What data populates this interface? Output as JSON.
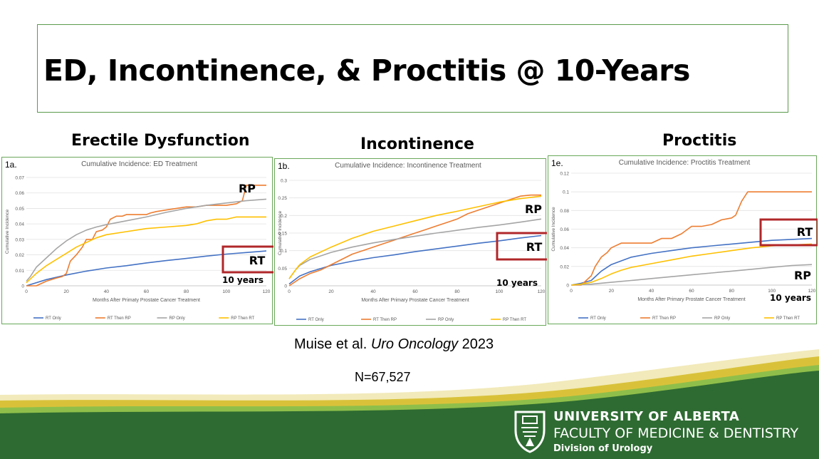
{
  "slide": {
    "title": "ED, Incontinence, & Proctitis @ 10-Years",
    "citation_authors": "Muise et al.",
    "citation_journal": "Uro Oncology",
    "citation_year": "2023",
    "n_label": "N=67,527"
  },
  "branding": {
    "line1": "UNIVERSITY OF ALBERTA",
    "line2": "FACULTY OF MEDICINE & DENTISTRY",
    "line3": "Division of Urology",
    "green": "#2e6b32",
    "gold": "#d9c23a"
  },
  "colors": {
    "RT Only": "#4472c4",
    "RT Then RP": "#ed7d31",
    "RP Only": "#a5a5a5",
    "RP Then RT": "#ffc000",
    "highlight": "#b0272a"
  },
  "chart_data": [
    {
      "type": "line",
      "heading": "Erectile Dysfunction",
      "panel": "1a.",
      "title": "Cumulative Incidence: ED Treatment",
      "xlabel": "Months After Primaty Prostate Cancer Treatment",
      "ylabel": "Cumulative Incidence",
      "xlim": [
        0,
        120
      ],
      "ylim": [
        0,
        0.07
      ],
      "xticks": [
        0,
        20,
        40,
        60,
        80,
        100,
        120
      ],
      "yticks": [
        0,
        0.01,
        0.02,
        0.03,
        0.04,
        0.05,
        0.06,
        0.07
      ],
      "grid": true,
      "legend": "bottom",
      "series": [
        {
          "name": "RT Only",
          "x": [
            0,
            10,
            20,
            30,
            40,
            50,
            60,
            70,
            80,
            90,
            100,
            110,
            120
          ],
          "y": [
            0,
            0.004,
            0.007,
            0.0095,
            0.0115,
            0.013,
            0.0148,
            0.0163,
            0.0177,
            0.0192,
            0.0205,
            0.0215,
            0.0225
          ]
        },
        {
          "name": "RT Then RP",
          "x": [
            0,
            5,
            10,
            15,
            18,
            20,
            22,
            25,
            28,
            30,
            33,
            35,
            38,
            40,
            42,
            45,
            48,
            50,
            55,
            60,
            62,
            65,
            70,
            75,
            80,
            85,
            90,
            100,
            105,
            108,
            110,
            115,
            120
          ],
          "y": [
            0,
            0,
            0.003,
            0.005,
            0.006,
            0.008,
            0.016,
            0.02,
            0.025,
            0.03,
            0.03,
            0.035,
            0.036,
            0.038,
            0.043,
            0.045,
            0.045,
            0.046,
            0.046,
            0.046,
            0.047,
            0.048,
            0.049,
            0.05,
            0.051,
            0.051,
            0.052,
            0.052,
            0.053,
            0.055,
            0.065,
            0.065,
            0.065
          ]
        },
        {
          "name": "RP Only",
          "x": [
            0,
            2,
            5,
            10,
            15,
            20,
            25,
            30,
            35,
            40,
            50,
            60,
            70,
            80,
            90,
            100,
            110,
            120
          ],
          "y": [
            0.003,
            0.006,
            0.012,
            0.018,
            0.024,
            0.029,
            0.033,
            0.036,
            0.038,
            0.0395,
            0.042,
            0.0445,
            0.0475,
            0.05,
            0.052,
            0.0535,
            0.055,
            0.056
          ]
        },
        {
          "name": "RP Then RT",
          "x": [
            0,
            5,
            10,
            15,
            20,
            25,
            30,
            35,
            40,
            50,
            55,
            60,
            70,
            80,
            85,
            90,
            95,
            100,
            105,
            110,
            120
          ],
          "y": [
            0.002,
            0.008,
            0.013,
            0.017,
            0.021,
            0.025,
            0.028,
            0.031,
            0.033,
            0.035,
            0.036,
            0.037,
            0.038,
            0.039,
            0.04,
            0.042,
            0.043,
            0.043,
            0.0445,
            0.0445,
            0.0445
          ]
        }
      ],
      "annotations": {
        "top_label": "RP",
        "boxed_label": "RT",
        "years_label": "10 years"
      }
    },
    {
      "type": "line",
      "heading": "Incontinence",
      "panel": "1b.",
      "title": "Cumulative Incidence: Incontinence Treatment",
      "xlabel": "Months After Primary Prostate Cancer Treatment",
      "ylabel": "Cumulative Incidence",
      "xlim": [
        0,
        120
      ],
      "ylim": [
        0,
        0.3
      ],
      "xticks": [
        0,
        20,
        40,
        60,
        80,
        100,
        120
      ],
      "yticks": [
        0,
        0.05,
        0.1,
        0.15,
        0.2,
        0.25,
        0.3
      ],
      "grid": true,
      "legend": "bottom",
      "series": [
        {
          "name": "RT Only",
          "x": [
            0,
            5,
            10,
            20,
            30,
            40,
            50,
            60,
            70,
            80,
            90,
            100,
            110,
            120
          ],
          "y": [
            0.005,
            0.028,
            0.04,
            0.058,
            0.07,
            0.08,
            0.088,
            0.097,
            0.105,
            0.113,
            0.121,
            0.128,
            0.136,
            0.143
          ]
        },
        {
          "name": "RT Then RP",
          "x": [
            0,
            5,
            10,
            15,
            20,
            25,
            30,
            35,
            40,
            45,
            50,
            55,
            60,
            65,
            70,
            75,
            80,
            85,
            90,
            95,
            100,
            105,
            110,
            115,
            120
          ],
          "y": [
            0,
            0.02,
            0.035,
            0.045,
            0.06,
            0.075,
            0.09,
            0.1,
            0.11,
            0.12,
            0.13,
            0.14,
            0.15,
            0.16,
            0.17,
            0.18,
            0.19,
            0.205,
            0.215,
            0.225,
            0.235,
            0.245,
            0.255,
            0.258,
            0.258
          ]
        },
        {
          "name": "RP Only",
          "x": [
            0,
            3,
            5,
            10,
            20,
            30,
            40,
            50,
            60,
            70,
            80,
            90,
            100,
            110,
            120
          ],
          "y": [
            0.02,
            0.045,
            0.058,
            0.075,
            0.095,
            0.11,
            0.122,
            0.132,
            0.141,
            0.15,
            0.158,
            0.166,
            0.173,
            0.181,
            0.19
          ]
        },
        {
          "name": "RP Then RT",
          "x": [
            0,
            3,
            5,
            10,
            20,
            30,
            40,
            50,
            60,
            70,
            80,
            90,
            100,
            110,
            120
          ],
          "y": [
            0.02,
            0.045,
            0.06,
            0.082,
            0.11,
            0.135,
            0.155,
            0.17,
            0.185,
            0.2,
            0.212,
            0.225,
            0.238,
            0.248,
            0.255
          ]
        }
      ],
      "annotations": {
        "top_label": "RP",
        "boxed_label": "RT",
        "years_label": "10 years"
      }
    },
    {
      "type": "line",
      "heading": "Proctitis",
      "panel": "1e.",
      "title": "Cumulative Incidence: Proctitis Treatment",
      "xlabel": "Months After Primary Prostate Cancer Treatment",
      "ylabel": "Cumulative Incidence",
      "xlim": [
        0,
        120
      ],
      "ylim": [
        0,
        0.12
      ],
      "xticks": [
        0,
        20,
        40,
        60,
        80,
        100,
        120
      ],
      "yticks": [
        0,
        0.02,
        0.04,
        0.06,
        0.08,
        0.1,
        0.12
      ],
      "grid": true,
      "legend": "bottom",
      "series": [
        {
          "name": "RT Only",
          "x": [
            0,
            5,
            10,
            15,
            20,
            30,
            40,
            50,
            60,
            70,
            80,
            90,
            100,
            110,
            120
          ],
          "y": [
            0,
            0.002,
            0.005,
            0.015,
            0.022,
            0.03,
            0.034,
            0.037,
            0.04,
            0.042,
            0.044,
            0.046,
            0.048,
            0.049,
            0.05
          ]
        },
        {
          "name": "RT Then RP",
          "x": [
            0,
            5,
            10,
            12,
            15,
            18,
            20,
            25,
            30,
            35,
            40,
            45,
            50,
            55,
            60,
            65,
            70,
            75,
            80,
            82,
            85,
            88,
            90,
            95,
            100,
            110,
            120
          ],
          "y": [
            0,
            0,
            0.01,
            0.02,
            0.03,
            0.035,
            0.04,
            0.045,
            0.045,
            0.045,
            0.045,
            0.05,
            0.05,
            0.055,
            0.063,
            0.063,
            0.065,
            0.07,
            0.072,
            0.075,
            0.09,
            0.1,
            0.1,
            0.1,
            0.1,
            0.1,
            0.1
          ]
        },
        {
          "name": "RP Only",
          "x": [
            0,
            10,
            20,
            30,
            40,
            50,
            60,
            70,
            80,
            90,
            100,
            110,
            120
          ],
          "y": [
            0,
            0.001,
            0.003,
            0.005,
            0.007,
            0.009,
            0.011,
            0.013,
            0.015,
            0.017,
            0.019,
            0.021,
            0.022
          ]
        },
        {
          "name": "RP Then RT",
          "x": [
            0,
            5,
            10,
            15,
            20,
            25,
            30,
            35,
            40,
            50,
            60,
            70,
            80,
            90,
            100,
            110,
            120
          ],
          "y": [
            0,
            0.001,
            0.003,
            0.007,
            0.012,
            0.016,
            0.019,
            0.021,
            0.023,
            0.027,
            0.031,
            0.034,
            0.037,
            0.04,
            0.042,
            0.043,
            0.044
          ]
        }
      ],
      "annotations": {
        "top_label": "RT",
        "boxed_label": "RT",
        "years_label": "10 years",
        "bottom_label": "RP"
      }
    }
  ]
}
